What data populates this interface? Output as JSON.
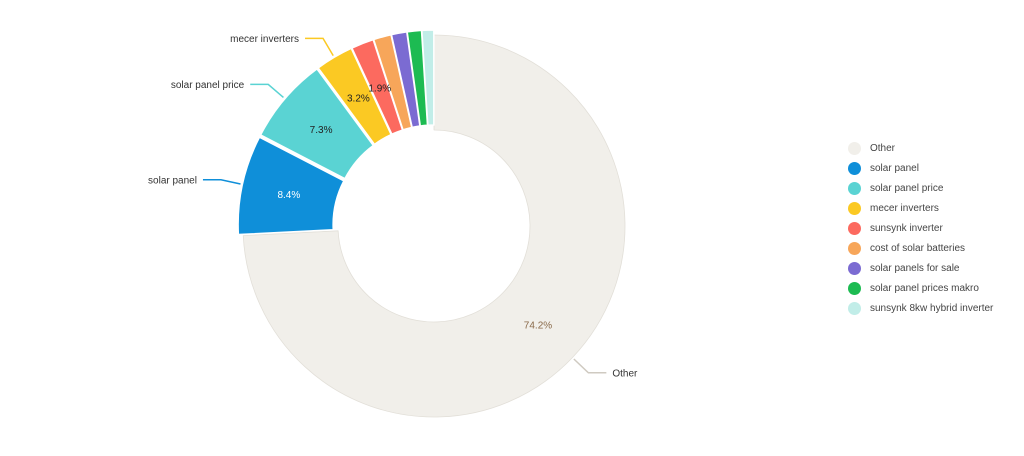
{
  "chart_data": {
    "type": "pie",
    "variant": "donut",
    "legend_position": "right",
    "slices": [
      {
        "name": "Other",
        "value": 74.2,
        "label": "74.2%",
        "color": "#f1efea",
        "label_color": "#8a6a4a",
        "callout": "Other"
      },
      {
        "name": "solar panel",
        "value": 8.4,
        "label": "8.4%",
        "color": "#0f8fd9",
        "label_color": "#ffffff",
        "callout": "solar panel"
      },
      {
        "name": "solar panel price",
        "value": 7.3,
        "label": "7.3%",
        "color": "#5ad3d3",
        "label_color": "#222222",
        "callout": "solar panel price"
      },
      {
        "name": "mecer inverters",
        "value": 3.2,
        "label": "3.2%",
        "color": "#fbc923",
        "label_color": "#222222",
        "callout": "mecer inverters"
      },
      {
        "name": "sunsynk inverter",
        "value": 1.9,
        "label": "1.9%",
        "color": "#fc6a5f",
        "label_color": "#222222",
        "callout": ""
      },
      {
        "name": "cost of solar batteries",
        "value": 1.5,
        "label": "",
        "color": "#f7a65a",
        "label_color": "#222222",
        "callout": ""
      },
      {
        "name": "solar panels for sale",
        "value": 1.3,
        "label": "",
        "color": "#7b6bd2",
        "label_color": "#222222",
        "callout": ""
      },
      {
        "name": "solar panel prices makro",
        "value": 1.2,
        "label": "",
        "color": "#1dbb52",
        "label_color": "#222222",
        "callout": ""
      },
      {
        "name": "sunsynk 8kw hybrid inverter",
        "value": 1.0,
        "label": "",
        "color": "#c1ede8",
        "label_color": "#222222",
        "callout": ""
      }
    ]
  }
}
